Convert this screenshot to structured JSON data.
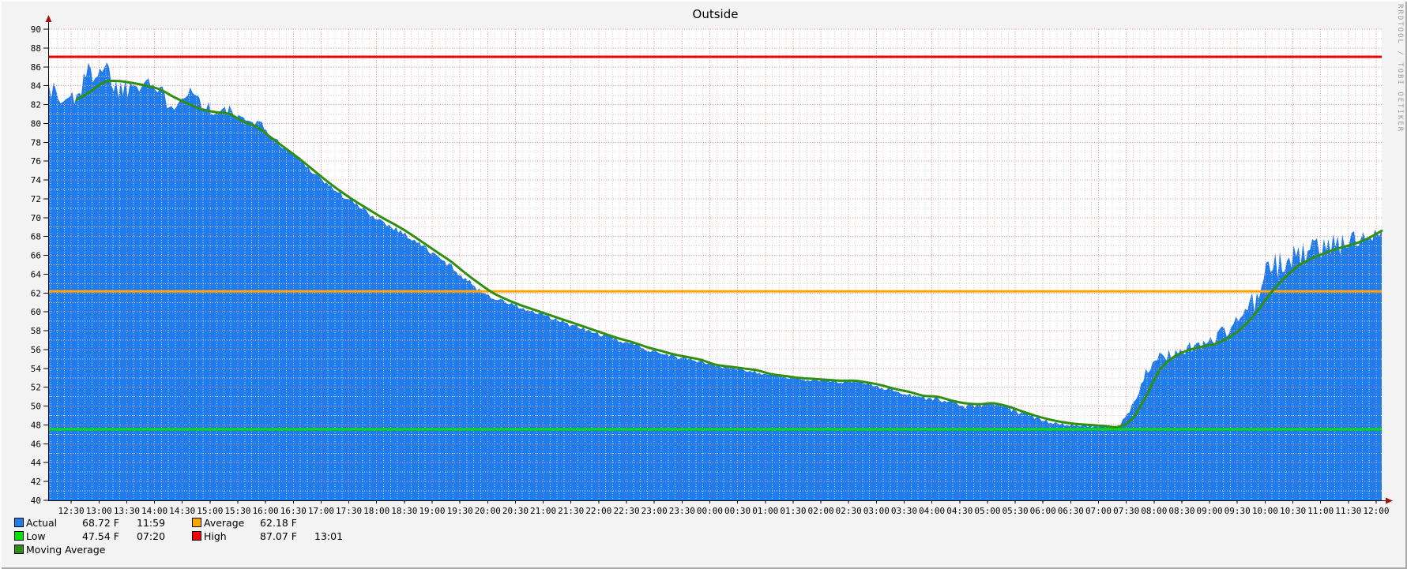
{
  "title": "Outside",
  "watermark": "RRDTOOL / TOBI OETIKER",
  "colors": {
    "actual": "#1e7cec",
    "average": "#ffa500",
    "low": "#00e400",
    "high": "#f40000",
    "moving_average": "#2f8f11",
    "grid_major": "#ee8f8f",
    "grid_minor": "#ddcfcf",
    "axis": "#000000",
    "arrow": "#a01414",
    "plot_bg": "#ffffff",
    "canvas_bg": "#f3f3f3",
    "text": "#000000",
    "watermark_text": "#9a9a9a"
  },
  "legend": {
    "actual": {
      "label": "Actual",
      "value": "68.72 F",
      "time": "11:59"
    },
    "average": {
      "label": "Average",
      "value": "62.18 F",
      "time": ""
    },
    "low": {
      "label": "Low",
      "value": "47.54 F",
      "time": "07:20"
    },
    "high": {
      "label": "High",
      "value": "87.07 F",
      "time": "13:01"
    },
    "moving_average": {
      "label": "Moving Average"
    }
  },
  "chart_data": {
    "type": "area",
    "title": "Outside",
    "unit": "F",
    "grid": true,
    "legend_position": "bottom-left",
    "y_axis": {
      "min": 40,
      "max": 90,
      "major_step": 2,
      "minor_step": 1,
      "ticks": [
        40,
        42,
        44,
        46,
        48,
        50,
        52,
        54,
        56,
        58,
        60,
        62,
        64,
        66,
        68,
        70,
        72,
        74,
        76,
        78,
        80,
        82,
        84,
        86,
        88,
        90
      ]
    },
    "x_axis": {
      "span_minutes": 1440,
      "first_label_offset_minutes": 24,
      "label_step_minutes": 30,
      "minor_step_minutes": 7.5,
      "labels": [
        "12:30",
        "13:00",
        "13:30",
        "14:00",
        "14:30",
        "15:00",
        "15:30",
        "16:00",
        "16:30",
        "17:00",
        "17:30",
        "18:00",
        "18:30",
        "19:00",
        "19:30",
        "20:00",
        "20:30",
        "21:00",
        "21:30",
        "22:00",
        "22:30",
        "23:00",
        "23:30",
        "00:00",
        "00:30",
        "01:00",
        "01:30",
        "02:00",
        "02:30",
        "03:00",
        "03:30",
        "04:00",
        "04:30",
        "05:00",
        "05:30",
        "06:00",
        "06:30",
        "07:00",
        "07:30",
        "08:00",
        "08:30",
        "09:00",
        "09:30",
        "10:00",
        "10:30",
        "11:00",
        "11:30",
        "12:00"
      ]
    },
    "sample_step_minutes": 15,
    "series": [
      {
        "name": "Actual",
        "style": "area",
        "color_key": "actual",
        "values": [
          84.0,
          82.2,
          83.2,
          85.5,
          86.2,
          83.6,
          84.2,
          85.0,
          83.0,
          82.2,
          83.6,
          82.4,
          81.0,
          81.4,
          80.1,
          80.4,
          78.6,
          77.4,
          76.2,
          74.9,
          73.6,
          72.5,
          71.5,
          70.5,
          69.6,
          68.8,
          67.9,
          66.9,
          65.8,
          64.8,
          63.5,
          62.3,
          61.5,
          61.0,
          60.4,
          59.9,
          59.4,
          58.9,
          58.4,
          57.9,
          57.5,
          57.0,
          56.6,
          56.1,
          55.7,
          55.3,
          55.0,
          54.7,
          54.3,
          54.1,
          53.9,
          53.6,
          53.3,
          53.1,
          52.9,
          52.8,
          52.7,
          52.6,
          52.6,
          52.4,
          52.0,
          51.6,
          51.2,
          50.9,
          50.7,
          50.4,
          50.0,
          50.1,
          50.3,
          49.8,
          49.3,
          48.8,
          48.4,
          48.1,
          48.0,
          47.9,
          47.8,
          47.6,
          50.0,
          53.5,
          55.0,
          55.7,
          56.1,
          56.6,
          57.2,
          58.3,
          59.8,
          61.5,
          64.5,
          65.3,
          66.0,
          66.6,
          67.0,
          67.2,
          67.6,
          68.2,
          68.7
        ],
        "spike_amplitude": [
          1.6,
          1.5,
          1.6,
          1.5,
          1.5,
          1.4,
          1.3,
          1.2,
          1.2,
          1.0,
          0.9,
          0.9,
          0.8,
          0.7,
          0.6,
          0.5,
          0.3,
          0.3,
          0.3,
          0.3,
          0.3,
          0.3,
          0.3,
          0.3,
          0.3,
          0.3,
          0.3,
          0.3,
          0.3,
          0.3,
          0.3,
          0.25,
          0.25,
          0.25,
          0.25,
          0.25,
          0.25,
          0.25,
          0.25,
          0.25,
          0.25,
          0.25,
          0.25,
          0.25,
          0.25,
          0.25,
          0.25,
          0.25,
          0.2,
          0.2,
          0.2,
          0.2,
          0.2,
          0.2,
          0.2,
          0.2,
          0.2,
          0.2,
          0.2,
          0.2,
          0.25,
          0.25,
          0.3,
          0.25,
          0.25,
          0.25,
          0.3,
          0.3,
          0.3,
          0.3,
          0.3,
          0.25,
          0.25,
          0.2,
          0.2,
          0.2,
          0.15,
          0.1,
          0.4,
          0.5,
          0.7,
          0.7,
          0.7,
          0.7,
          0.8,
          0.9,
          1.0,
          1.5,
          2.2,
          1.6,
          1.4,
          1.3,
          1.2,
          1.2,
          1.1,
          1.0,
          0.5
        ]
      },
      {
        "name": "Moving Average",
        "style": "line",
        "color_key": "moving_average",
        "values": [
          null,
          null,
          82.5,
          83.4,
          84.4,
          84.5,
          84.3,
          84.0,
          83.6,
          82.8,
          82.1,
          81.5,
          81.2,
          81.0,
          80.2,
          79.6,
          78.5,
          77.4,
          76.3,
          75.1,
          73.9,
          72.8,
          71.8,
          70.9,
          70.0,
          69.2,
          68.3,
          67.3,
          66.3,
          65.3,
          64.1,
          63.0,
          62.0,
          61.3,
          60.7,
          60.2,
          59.7,
          59.2,
          58.7,
          58.2,
          57.7,
          57.2,
          56.8,
          56.3,
          55.9,
          55.5,
          55.2,
          54.9,
          54.4,
          54.2,
          54.0,
          53.8,
          53.4,
          53.2,
          53.0,
          52.9,
          52.8,
          52.7,
          52.7,
          52.5,
          52.2,
          51.8,
          51.5,
          51.1,
          51.0,
          50.6,
          50.3,
          50.2,
          50.3,
          50.0,
          49.5,
          49.0,
          48.6,
          48.3,
          48.1,
          48.0,
          47.9,
          47.8,
          48.6,
          51.0,
          53.8,
          55.2,
          55.9,
          56.3,
          56.6,
          57.3,
          58.4,
          60.0,
          62.0,
          63.6,
          64.9,
          65.7,
          66.3,
          66.8,
          67.2,
          67.8,
          68.6
        ]
      }
    ],
    "constant_lines": [
      {
        "name": "High",
        "value": 87.07,
        "color_key": "high",
        "time": "13:01"
      },
      {
        "name": "Average",
        "value": 62.18,
        "color_key": "average"
      },
      {
        "name": "Low",
        "value": 47.54,
        "color_key": "low",
        "time": "07:20"
      }
    ],
    "current": {
      "value": 68.72,
      "time": "11:59"
    }
  }
}
